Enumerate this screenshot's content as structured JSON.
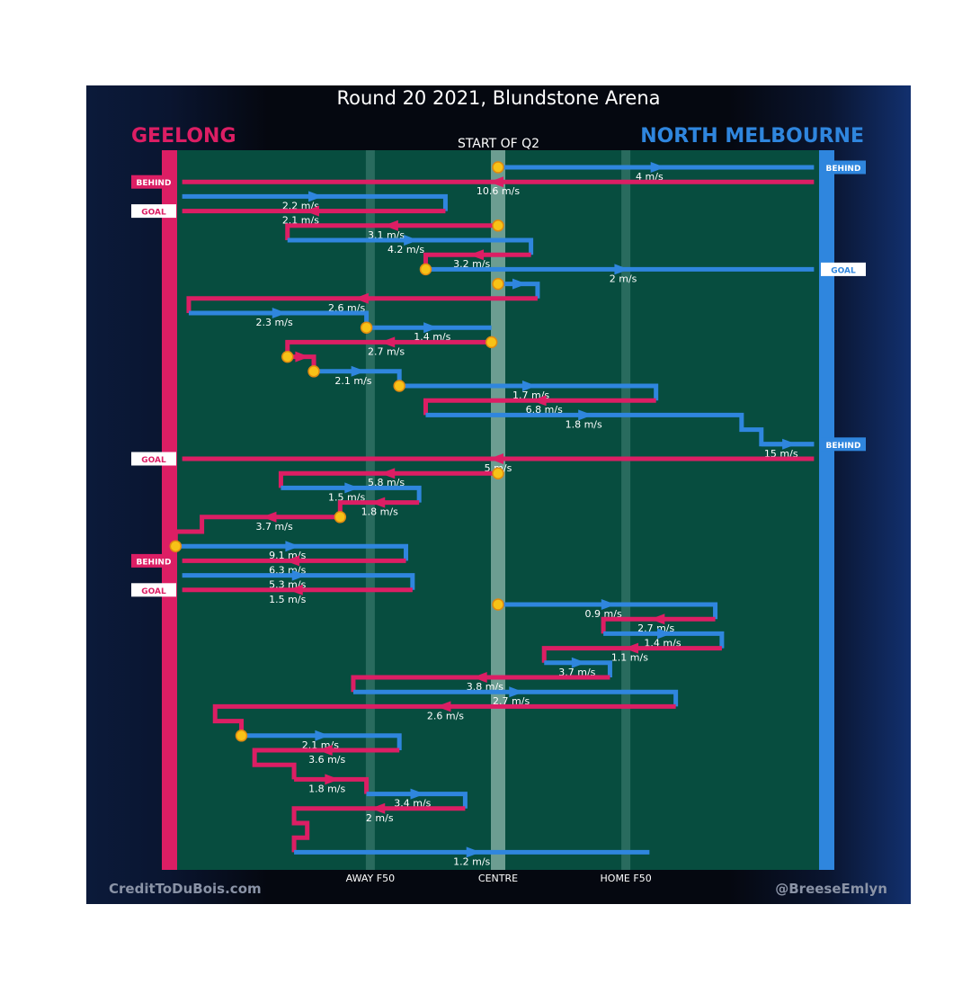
{
  "title": "Round 20 2021, Blundstone Arena",
  "subtitle": "START OF Q2",
  "team_left": "GEELONG",
  "team_right": "NORTH MELBOURNE",
  "credit_left": "CreditToDuBois.com",
  "credit_right": "@BreeseEmlyn",
  "colors": {
    "geelong": "#dc1e64",
    "north": "#2f86de",
    "field": "#074d3f",
    "marker": "#f7c217"
  },
  "chart_data": {
    "type": "line",
    "x_ticks": [
      {
        "label": "AWAY F50",
        "pos": 0.31
      },
      {
        "label": "CENTRE",
        "pos": 0.5
      },
      {
        "label": "HOME F50",
        "pos": 0.69
      }
    ],
    "chains": [
      {
        "team": "north",
        "points": [
          [
            0.5,
            1
          ],
          [
            0.98,
            1
          ]
        ],
        "label": "4 m/s",
        "label_at": [
          0.73,
          1
        ],
        "outcome": "BEHIND",
        "start_marker": true
      },
      {
        "team": "geelong",
        "points": [
          [
            0.98,
            2
          ],
          [
            0.02,
            2
          ]
        ],
        "label": "10.6 m/s",
        "label_at": [
          0.5,
          2
        ],
        "outcome": "BEHIND"
      },
      {
        "team": "north",
        "points": [
          [
            0.02,
            3
          ],
          [
            0.42,
            3
          ],
          [
            0.42,
            4
          ]
        ],
        "label": "2.2 m/s",
        "label_at": [
          0.2,
          3
        ]
      },
      {
        "team": "geelong",
        "points": [
          [
            0.42,
            4
          ],
          [
            0.02,
            4
          ]
        ],
        "label": "2.1 m/s",
        "label_at": [
          0.2,
          4
        ],
        "outcome": "GOAL"
      },
      {
        "team": "geelong",
        "points": [
          [
            0.5,
            5
          ],
          [
            0.18,
            5
          ],
          [
            0.18,
            6
          ]
        ],
        "label": "3.1 m/s",
        "label_at": [
          0.33,
          5
        ],
        "start_marker": true
      },
      {
        "team": "north",
        "points": [
          [
            0.18,
            6
          ],
          [
            0.55,
            6
          ],
          [
            0.55,
            7
          ]
        ],
        "label": "4.2 m/s",
        "label_at": [
          0.36,
          6
        ]
      },
      {
        "team": "geelong",
        "points": [
          [
            0.55,
            7
          ],
          [
            0.39,
            7
          ],
          [
            0.39,
            8
          ]
        ],
        "label": "3.2 m/s",
        "label_at": [
          0.46,
          7
        ]
      },
      {
        "team": "north",
        "points": [
          [
            0.39,
            8
          ],
          [
            0.98,
            8
          ]
        ],
        "label": "2 m/s",
        "label_at": [
          0.69,
          8
        ],
        "outcome": "GOAL",
        "start_marker": true
      },
      {
        "team": "north",
        "points": [
          [
            0.5,
            9
          ],
          [
            0.56,
            9
          ],
          [
            0.56,
            10
          ]
        ],
        "label": "",
        "label_at": [
          0.53,
          9
        ],
        "start_marker": true
      },
      {
        "team": "geelong",
        "points": [
          [
            0.56,
            10
          ],
          [
            0.03,
            10
          ],
          [
            0.03,
            11
          ]
        ],
        "label": "2.6 m/s",
        "label_at": [
          0.27,
          10
        ]
      },
      {
        "team": "north",
        "points": [
          [
            0.03,
            11
          ],
          [
            0.3,
            11
          ],
          [
            0.3,
            12
          ]
        ],
        "label": "2.3 m/s",
        "label_at": [
          0.16,
          11
        ]
      },
      {
        "team": "north",
        "points": [
          [
            0.3,
            12
          ],
          [
            0.49,
            12
          ]
        ],
        "label": "1.4 m/s",
        "label_at": [
          0.4,
          12
        ],
        "start_marker": true
      },
      {
        "team": "geelong",
        "points": [
          [
            0.49,
            13
          ],
          [
            0.18,
            13
          ],
          [
            0.18,
            14
          ]
        ],
        "label": "2.7 m/s",
        "label_at": [
          0.33,
          13
        ],
        "start_marker": true
      },
      {
        "team": "geelong",
        "points": [
          [
            0.18,
            14
          ],
          [
            0.22,
            14
          ],
          [
            0.22,
            15
          ]
        ],
        "label": "",
        "label_at": [
          0.2,
          14
        ],
        "start_marker": true
      },
      {
        "team": "north",
        "points": [
          [
            0.22,
            15
          ],
          [
            0.35,
            15
          ],
          [
            0.35,
            16
          ]
        ],
        "label": "2.1 m/s",
        "label_at": [
          0.28,
          15
        ],
        "start_marker": true
      },
      {
        "team": "north",
        "points": [
          [
            0.35,
            16
          ],
          [
            0.74,
            16
          ],
          [
            0.74,
            17
          ]
        ],
        "label": "1.7 m/s",
        "label_at": [
          0.55,
          16
        ],
        "start_marker": true
      },
      {
        "team": "geelong",
        "points": [
          [
            0.74,
            17
          ],
          [
            0.39,
            17
          ],
          [
            0.39,
            18
          ]
        ],
        "label": "6.8 m/s",
        "label_at": [
          0.57,
          17
        ]
      },
      {
        "team": "north",
        "points": [
          [
            0.39,
            18
          ],
          [
            0.87,
            18
          ],
          [
            0.87,
            19
          ],
          [
            0.9,
            19
          ],
          [
            0.9,
            20
          ],
          [
            0.98,
            20
          ]
        ],
        "label": "1.8 m/s",
        "label_at": [
          0.63,
          18
        ],
        "outcome": "BEHIND"
      },
      {
        "team": "north",
        "points": [
          [
            0.9,
            20
          ],
          [
            0.98,
            20
          ]
        ],
        "label": "15 m/s",
        "label_at": [
          0.93,
          20
        ]
      },
      {
        "team": "geelong",
        "points": [
          [
            0.98,
            21
          ],
          [
            0.02,
            21
          ]
        ],
        "label": "5 m/s",
        "label_at": [
          0.5,
          21
        ],
        "outcome": "GOAL"
      },
      {
        "team": "geelong",
        "points": [
          [
            0.5,
            22
          ],
          [
            0.17,
            22
          ],
          [
            0.17,
            23
          ]
        ],
        "label": "5.8 m/s",
        "label_at": [
          0.33,
          22
        ],
        "start_marker": true
      },
      {
        "team": "north",
        "points": [
          [
            0.17,
            23
          ],
          [
            0.38,
            23
          ],
          [
            0.38,
            24
          ]
        ],
        "label": "1.5 m/s",
        "label_at": [
          0.27,
          23
        ]
      },
      {
        "team": "geelong",
        "points": [
          [
            0.38,
            24
          ],
          [
            0.26,
            24
          ],
          [
            0.26,
            25
          ]
        ],
        "label": "1.8 m/s",
        "label_at": [
          0.32,
          24
        ]
      },
      {
        "team": "geelong",
        "points": [
          [
            0.26,
            25
          ],
          [
            0.05,
            25
          ],
          [
            0.05,
            26
          ],
          [
            0.01,
            26
          ],
          [
            0.01,
            27
          ]
        ],
        "label": "3.7 m/s",
        "label_at": [
          0.16,
          25
        ],
        "start_marker": true
      },
      {
        "team": "north",
        "points": [
          [
            0.01,
            27
          ],
          [
            0.36,
            27
          ],
          [
            0.36,
            28
          ]
        ],
        "label": "9.1 m/s",
        "label_at": [
          0.18,
          27
        ],
        "start_marker": true
      },
      {
        "team": "geelong",
        "points": [
          [
            0.36,
            28
          ],
          [
            0.02,
            28
          ]
        ],
        "label": "6.3 m/s",
        "label_at": [
          0.18,
          28
        ],
        "outcome": "BEHIND"
      },
      {
        "team": "north",
        "points": [
          [
            0.02,
            29
          ],
          [
            0.37,
            29
          ],
          [
            0.37,
            30
          ]
        ],
        "label": "5.3 m/s",
        "label_at": [
          0.18,
          29
        ]
      },
      {
        "team": "geelong",
        "points": [
          [
            0.37,
            30
          ],
          [
            0.02,
            30
          ]
        ],
        "label": "1.5 m/s",
        "label_at": [
          0.18,
          30
        ],
        "outcome": "GOAL"
      },
      {
        "team": "north",
        "points": [
          [
            0.5,
            31
          ],
          [
            0.83,
            31
          ],
          [
            0.83,
            32
          ]
        ],
        "label": "0.9 m/s",
        "label_at": [
          0.66,
          31
        ],
        "start_marker": true
      },
      {
        "team": "geelong",
        "points": [
          [
            0.83,
            32
          ],
          [
            0.66,
            32
          ],
          [
            0.66,
            33
          ]
        ],
        "label": "2.7 m/s",
        "label_at": [
          0.74,
          32
        ]
      },
      {
        "team": "north",
        "points": [
          [
            0.66,
            33
          ],
          [
            0.84,
            33
          ],
          [
            0.84,
            34
          ]
        ],
        "label": "1.4 m/s",
        "label_at": [
          0.75,
          33
        ]
      },
      {
        "team": "geelong",
        "points": [
          [
            0.84,
            34
          ],
          [
            0.57,
            34
          ],
          [
            0.57,
            35
          ]
        ],
        "label": "1.1 m/s",
        "label_at": [
          0.7,
          34
        ]
      },
      {
        "team": "north",
        "points": [
          [
            0.57,
            35
          ],
          [
            0.67,
            35
          ],
          [
            0.67,
            36
          ]
        ],
        "label": "3.7 m/s",
        "label_at": [
          0.62,
          35
        ]
      },
      {
        "team": "geelong",
        "points": [
          [
            0.67,
            36
          ],
          [
            0.28,
            36
          ],
          [
            0.28,
            37
          ]
        ],
        "label": "3.8 m/s",
        "label_at": [
          0.48,
          36
        ]
      },
      {
        "team": "north",
        "points": [
          [
            0.28,
            37
          ],
          [
            0.77,
            37
          ],
          [
            0.77,
            38
          ]
        ],
        "label": "2.7 m/s",
        "label_at": [
          0.52,
          37
        ]
      },
      {
        "team": "geelong",
        "points": [
          [
            0.77,
            38
          ],
          [
            0.07,
            38
          ],
          [
            0.07,
            39
          ],
          [
            0.11,
            39
          ],
          [
            0.11,
            40
          ]
        ],
        "label": "2.6 m/s",
        "label_at": [
          0.42,
          38
        ]
      },
      {
        "team": "north",
        "points": [
          [
            0.11,
            40
          ],
          [
            0.35,
            40
          ],
          [
            0.35,
            41
          ]
        ],
        "label": "2.1 m/s",
        "label_at": [
          0.23,
          40
        ],
        "start_marker": true
      },
      {
        "team": "geelong",
        "points": [
          [
            0.35,
            41
          ],
          [
            0.13,
            41
          ],
          [
            0.13,
            42
          ],
          [
            0.19,
            42
          ],
          [
            0.19,
            43
          ]
        ],
        "label": "3.6 m/s",
        "label_at": [
          0.24,
          41
        ]
      },
      {
        "team": "geelong",
        "points": [
          [
            0.19,
            43
          ],
          [
            0.3,
            43
          ],
          [
            0.3,
            44
          ]
        ],
        "label": "1.8 m/s",
        "label_at": [
          0.24,
          43
        ]
      },
      {
        "team": "north",
        "points": [
          [
            0.3,
            44
          ],
          [
            0.45,
            44
          ],
          [
            0.45,
            45
          ]
        ],
        "label": "3.4 m/s",
        "label_at": [
          0.37,
          44
        ]
      },
      {
        "team": "geelong",
        "points": [
          [
            0.45,
            45
          ],
          [
            0.19,
            45
          ],
          [
            0.19,
            46
          ],
          [
            0.21,
            46
          ],
          [
            0.21,
            47
          ],
          [
            0.19,
            47
          ],
          [
            0.19,
            48
          ]
        ],
        "label": "2 m/s",
        "label_at": [
          0.32,
          45
        ]
      },
      {
        "team": "north",
        "points": [
          [
            0.19,
            48
          ],
          [
            0.73,
            48
          ]
        ],
        "label": "1.2 m/s",
        "label_at": [
          0.46,
          48
        ]
      }
    ]
  }
}
